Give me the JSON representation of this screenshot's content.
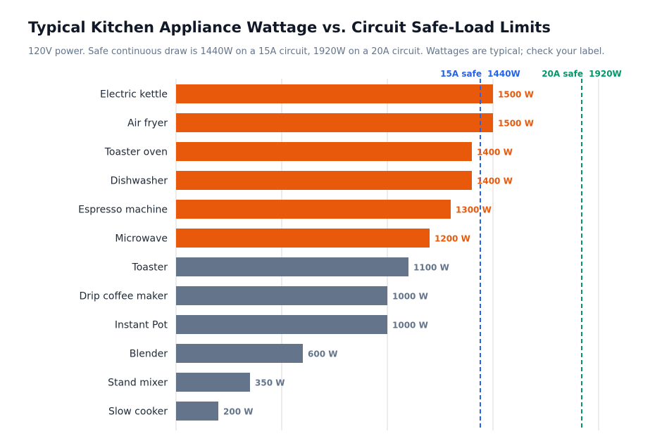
{
  "title": "Typical Kitchen Appliance Wattage vs. Circuit Safe-Load Limits",
  "subtitle": "120V power. Safe continuous draw is 1440W on a 15A circuit, 1920W on a 20A circuit. Wattages are typical; check your label.",
  "colors": {
    "over_limit_bar": "#e8590c",
    "under_limit_bar": "#64748b",
    "line_15a": "#2563eb",
    "line_20a": "#059669",
    "grid": "#d9d9d9"
  },
  "chart_data": {
    "type": "bar",
    "orientation": "horizontal",
    "title": "Typical Kitchen Appliance Wattage vs. Circuit Safe-Load Limits",
    "xlabel": "",
    "ylabel": "",
    "xlim": [
      0,
      2000
    ],
    "grid": true,
    "categories": [
      "Electric kettle",
      "Air fryer",
      "Toaster oven",
      "Dishwasher",
      "Espresso machine",
      "Microwave",
      "Toaster",
      "Drip coffee maker",
      "Instant Pot",
      "Blender",
      "Stand mixer",
      "Slow cooker"
    ],
    "values": [
      1500,
      1500,
      1400,
      1400,
      1300,
      1200,
      1100,
      1000,
      1000,
      600,
      350,
      200
    ],
    "value_labels": [
      "1500 W",
      "1500 W",
      "1400 W",
      "1400 W",
      "1300 W",
      "1200 W",
      "1100 W",
      "1000 W",
      "1000 W",
      "600 W",
      "350 W",
      "200 W"
    ],
    "highlighted": [
      true,
      true,
      true,
      true,
      true,
      true,
      false,
      false,
      false,
      false,
      false,
      false
    ],
    "reference_lines": [
      {
        "value": 1440,
        "name": "15A safe",
        "value_label": "1440W"
      },
      {
        "value": 1920,
        "name": "20A safe",
        "value_label": "1920W"
      }
    ]
  }
}
